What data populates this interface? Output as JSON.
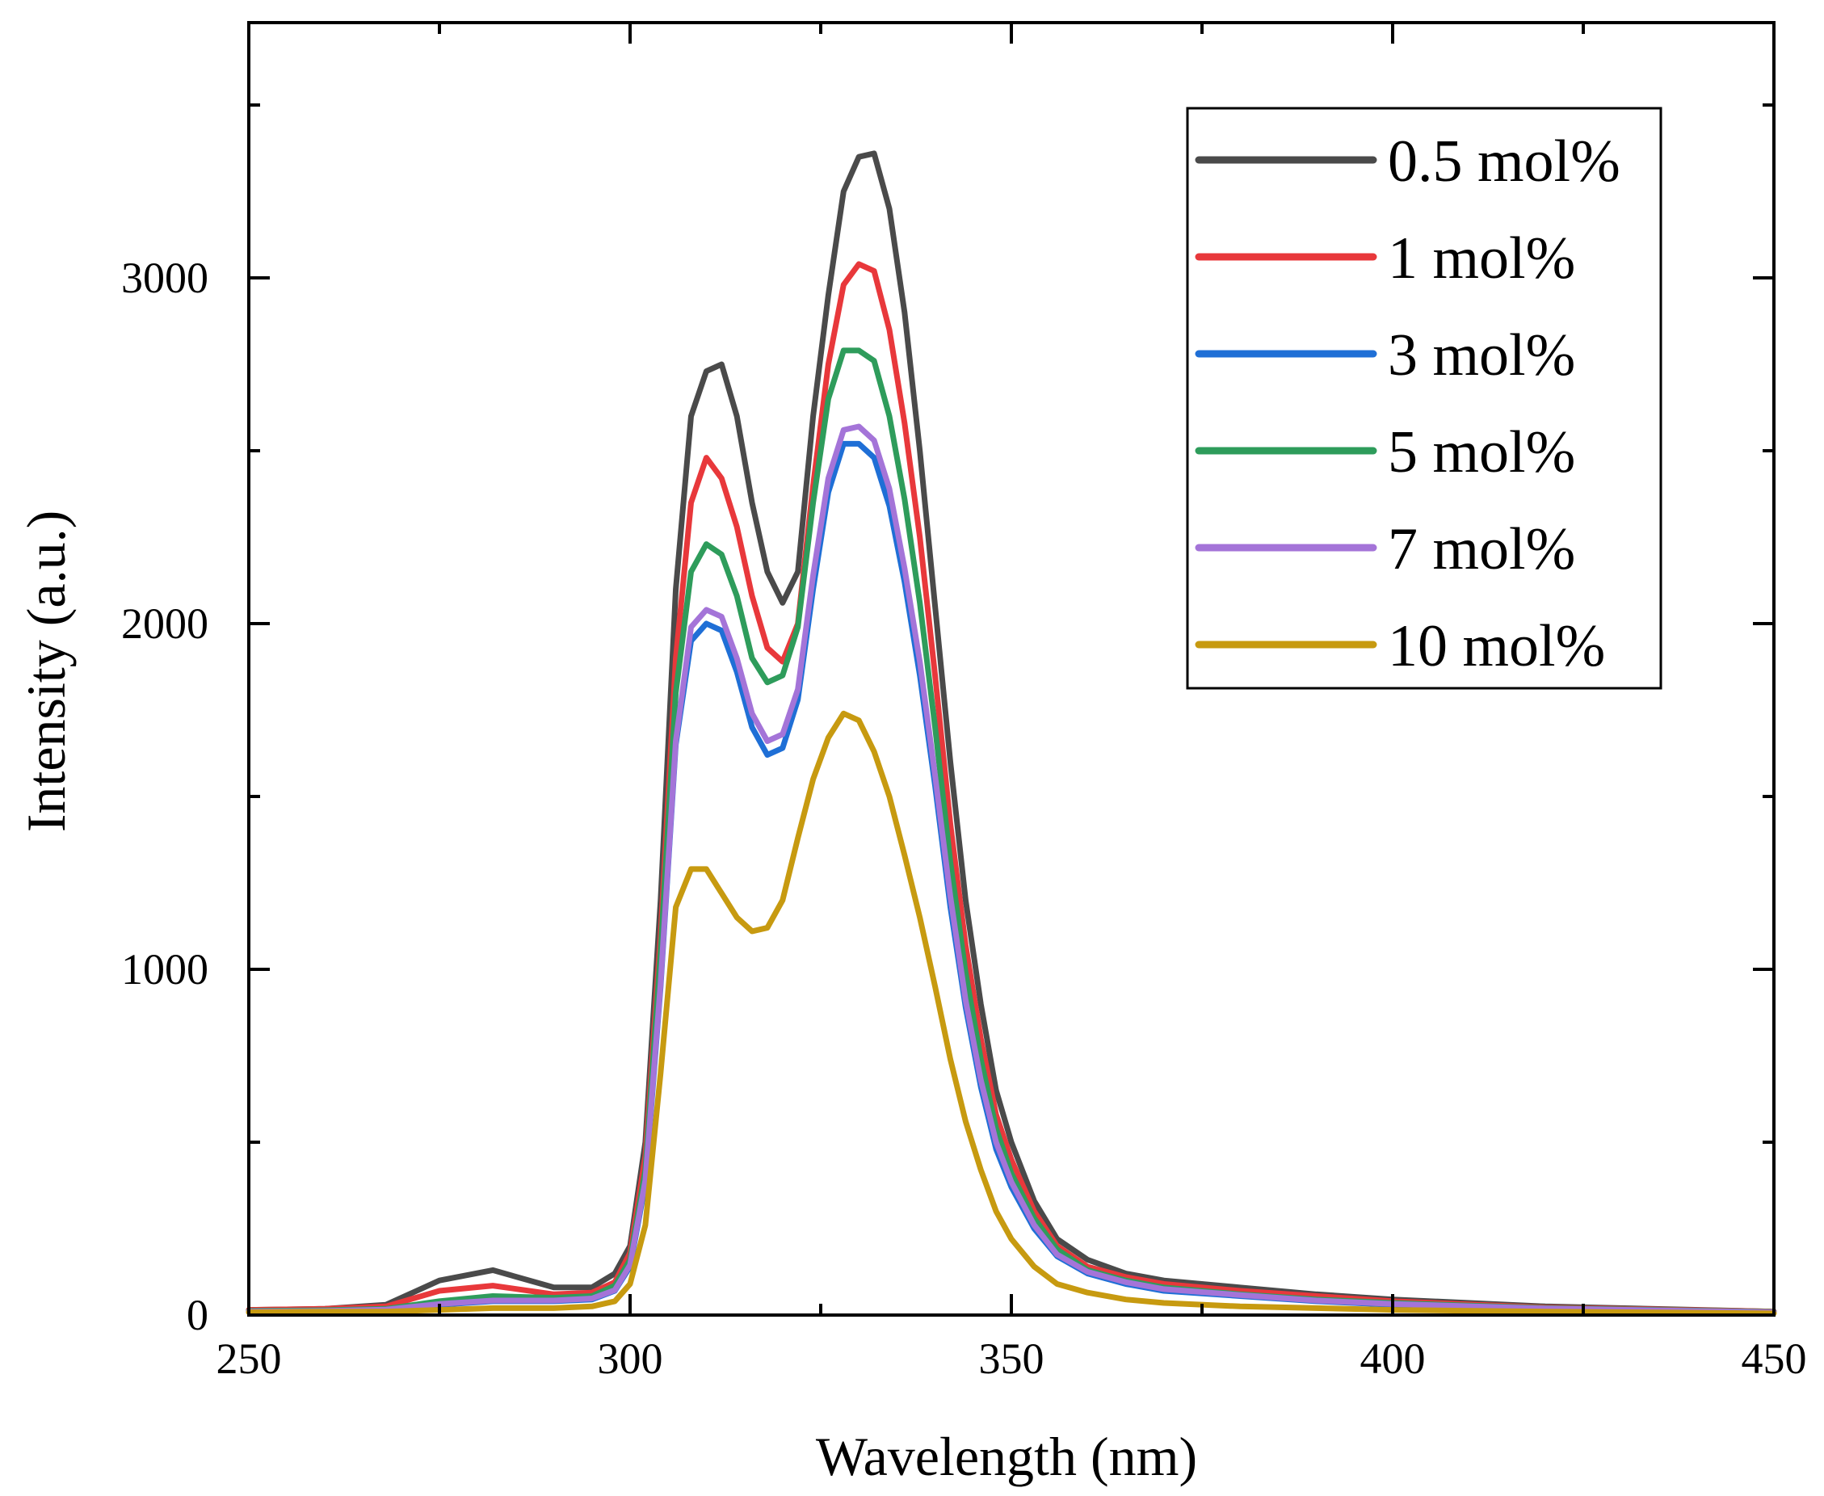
{
  "chart_data": {
    "type": "line",
    "title": "",
    "xlabel": "Wavelength (nm)",
    "ylabel": "Intensity (a.u.)",
    "xlim": [
      250,
      450
    ],
    "ylim": [
      0,
      3700
    ],
    "xticks": [
      250,
      300,
      350,
      400,
      450
    ],
    "xtick_labels": [
      "250",
      "300",
      "350",
      "400",
      "450"
    ],
    "yticks": [
      0,
      1000,
      2000,
      3000
    ],
    "ytick_labels": [
      "0",
      "1000",
      "2000",
      "3000"
    ],
    "grid": false,
    "legend_position": "top-right",
    "x": [
      250,
      260,
      268,
      275,
      282,
      290,
      295,
      298,
      300,
      302,
      304,
      306,
      308,
      310,
      312,
      314,
      316,
      318,
      320,
      322,
      324,
      326,
      328,
      330,
      332,
      334,
      336,
      338,
      340,
      342,
      344,
      346,
      348,
      350,
      353,
      356,
      360,
      365,
      370,
      380,
      390,
      400,
      420,
      450
    ],
    "series": [
      {
        "name": "0.5 mol%",
        "color": "#4a4a4a",
        "values": [
          15,
          18,
          30,
          100,
          130,
          80,
          80,
          120,
          200,
          500,
          1200,
          2100,
          2600,
          2730,
          2750,
          2600,
          2350,
          2150,
          2060,
          2150,
          2600,
          2950,
          3250,
          3350,
          3360,
          3200,
          2900,
          2500,
          2050,
          1600,
          1200,
          900,
          650,
          500,
          330,
          220,
          160,
          120,
          100,
          80,
          60,
          45,
          25,
          10
        ]
      },
      {
        "name": "1 mol%",
        "color": "#e8383b",
        "values": [
          15,
          18,
          25,
          70,
          85,
          60,
          65,
          95,
          180,
          460,
          1100,
          1900,
          2350,
          2480,
          2420,
          2280,
          2080,
          1930,
          1890,
          2000,
          2400,
          2750,
          2980,
          3040,
          3020,
          2850,
          2580,
          2250,
          1850,
          1420,
          1070,
          800,
          580,
          450,
          300,
          200,
          140,
          110,
          90,
          70,
          55,
          40,
          22,
          10
        ]
      },
      {
        "name": "3 mol%",
        "color": "#1f6fd6",
        "values": [
          10,
          12,
          15,
          30,
          40,
          40,
          45,
          70,
          140,
          380,
          950,
          1650,
          1950,
          2000,
          1980,
          1860,
          1700,
          1620,
          1640,
          1780,
          2100,
          2380,
          2520,
          2520,
          2480,
          2340,
          2120,
          1850,
          1530,
          1180,
          890,
          660,
          480,
          370,
          250,
          170,
          120,
          90,
          70,
          55,
          40,
          30,
          18,
          8
        ]
      },
      {
        "name": "5 mol%",
        "color": "#2e9c5b",
        "values": [
          12,
          14,
          18,
          40,
          55,
          50,
          55,
          85,
          160,
          420,
          1050,
          1800,
          2150,
          2230,
          2200,
          2080,
          1900,
          1830,
          1850,
          1990,
          2350,
          2650,
          2790,
          2790,
          2760,
          2600,
          2360,
          2060,
          1700,
          1310,
          990,
          740,
          540,
          410,
          280,
          190,
          130,
          100,
          80,
          60,
          45,
          35,
          20,
          9
        ]
      },
      {
        "name": "7 mol%",
        "color": "#a474d8",
        "values": [
          10,
          12,
          16,
          32,
          42,
          42,
          48,
          72,
          145,
          390,
          960,
          1660,
          1990,
          2040,
          2020,
          1900,
          1740,
          1660,
          1680,
          1810,
          2140,
          2420,
          2560,
          2570,
          2530,
          2390,
          2160,
          1890,
          1560,
          1210,
          910,
          680,
          500,
          385,
          260,
          175,
          125,
          95,
          75,
          58,
          42,
          32,
          19,
          8
        ]
      },
      {
        "name": "10 mol%",
        "color": "#c79a10",
        "values": [
          8,
          10,
          10,
          15,
          20,
          20,
          25,
          40,
          90,
          260,
          700,
          1180,
          1290,
          1290,
          1220,
          1150,
          1110,
          1120,
          1200,
          1380,
          1550,
          1670,
          1740,
          1720,
          1630,
          1500,
          1330,
          1150,
          950,
          740,
          560,
          420,
          300,
          220,
          140,
          90,
          65,
          45,
          35,
          25,
          20,
          15,
          10,
          5
        ]
      }
    ]
  }
}
